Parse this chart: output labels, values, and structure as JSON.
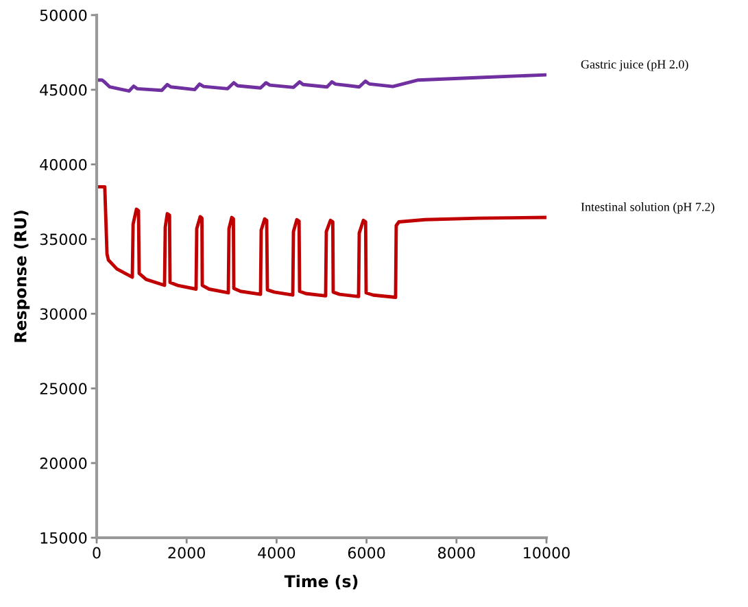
{
  "chart_data": {
    "type": "line",
    "xlabel": "Time (s)",
    "ylabel": "Response (RU)",
    "xlim": [
      0,
      10000
    ],
    "xticks": [
      0,
      2000,
      4000,
      6000,
      8000,
      10000
    ],
    "ylim": [
      15000,
      50000
    ],
    "yticks": [
      15000,
      20000,
      25000,
      30000,
      35000,
      40000,
      45000,
      50000
    ],
    "grid": false,
    "legend": false,
    "marker": "none",
    "line_style": "solid",
    "series": [
      {
        "name": "Gastric juice (pH 2.0)",
        "color": "#7030a0",
        "x": [
          0,
          120,
          163,
          290,
          518,
          721,
          823,
          900,
          1448,
          1570,
          1650,
          2180,
          2287,
          2380,
          2912,
          3049,
          3130,
          3643,
          3765,
          3850,
          4375,
          4512,
          4590,
          5122,
          5229,
          5310,
          5838,
          5976,
          6060,
          6585,
          7149,
          8521,
          10000
        ],
        "values": [
          45650,
          45650,
          45550,
          45190,
          45040,
          44915,
          45240,
          45070,
          44960,
          45350,
          45190,
          45010,
          45380,
          45220,
          45070,
          45470,
          45270,
          45120,
          45470,
          45310,
          45160,
          45530,
          45350,
          45190,
          45530,
          45380,
          45190,
          45580,
          45390,
          45220,
          45650,
          45820,
          46000
        ]
      },
      {
        "name": "Intestinal solution (pH 7.2)",
        "color": "#c00000",
        "x": [
          0,
          180,
          230,
          260,
          450,
          793,
          810,
          884,
          930,
          945,
          1100,
          1509,
          1525,
          1570,
          1620,
          1631,
          1800,
          2210,
          2225,
          2302,
          2340,
          2348,
          2500,
          2927,
          2942,
          3003,
          3040,
          3049,
          3200,
          3643,
          3658,
          3735,
          3780,
          3796,
          3950,
          4360,
          4375,
          4451,
          4500,
          4512,
          4650,
          5091,
          5106,
          5198,
          5250,
          5259,
          5400,
          5823,
          5838,
          5930,
          5980,
          5991,
          6150,
          6646,
          6660,
          6720,
          7300,
          8500,
          10000
        ],
        "values": [
          38500,
          38500,
          34000,
          33600,
          33000,
          32450,
          36000,
          37000,
          36900,
          32700,
          32300,
          31900,
          35800,
          36700,
          36600,
          32100,
          31900,
          31650,
          35700,
          36500,
          36400,
          31900,
          31650,
          31400,
          35700,
          36450,
          36350,
          31700,
          31500,
          31300,
          35600,
          36350,
          36250,
          31600,
          31450,
          31250,
          35500,
          36300,
          36200,
          31500,
          31350,
          31200,
          35500,
          36250,
          36150,
          31450,
          31300,
          31150,
          35400,
          36250,
          36150,
          31400,
          31250,
          31100,
          35900,
          36150,
          36300,
          36400,
          36450
        ]
      }
    ]
  }
}
